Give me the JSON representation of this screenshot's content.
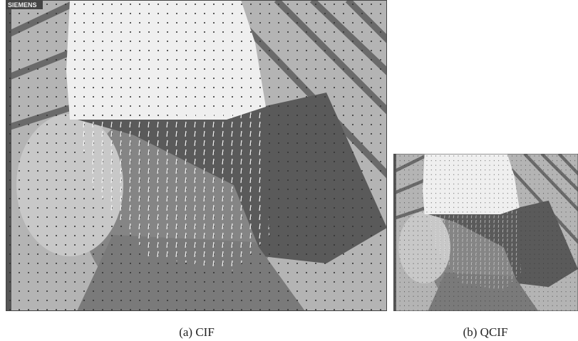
{
  "images": [
    {
      "logo": "SIEMENS",
      "caption": "(a) CIF"
    },
    {
      "caption": "(b) QCIF"
    }
  ]
}
